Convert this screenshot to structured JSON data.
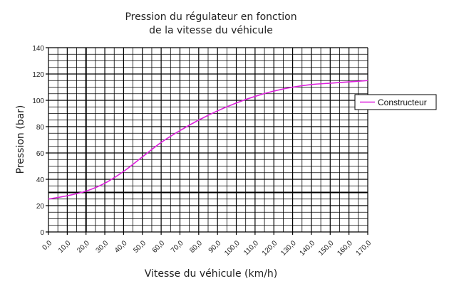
{
  "chart_data": {
    "type": "line",
    "title_lines": [
      "Pression du régulateur en fonction",
      "de la vitesse du véhicule"
    ],
    "xlabel": "Vitesse du véhicule (km/h)",
    "ylabel": "Pression (bar)",
    "xlim": [
      0,
      170
    ],
    "ylim": [
      0,
      140
    ],
    "x_ticks": [
      "0,0",
      "10,0",
      "20,0",
      "30,0",
      "40,0",
      "50,0",
      "60,0",
      "70,0",
      "80,0",
      "90,0",
      "100,0",
      "110,0",
      "120,0",
      "130,0",
      "140,0",
      "150,0",
      "160,0",
      "170,0"
    ],
    "y_ticks": [
      "0",
      "20",
      "40",
      "60",
      "80",
      "100",
      "120",
      "140"
    ],
    "grid": true,
    "legend_position": "right",
    "series": [
      {
        "name": "Constructeur",
        "color": "#dd22dd",
        "x": [
          0,
          10,
          20,
          30,
          40,
          50,
          60,
          70,
          80,
          90,
          100,
          110,
          120,
          130,
          140,
          150,
          160,
          170
        ],
        "y": [
          25,
          27.5,
          31,
          37,
          46,
          57,
          68,
          77,
          85,
          92,
          98,
          103,
          107,
          110,
          112,
          113,
          114,
          115
        ]
      }
    ]
  }
}
